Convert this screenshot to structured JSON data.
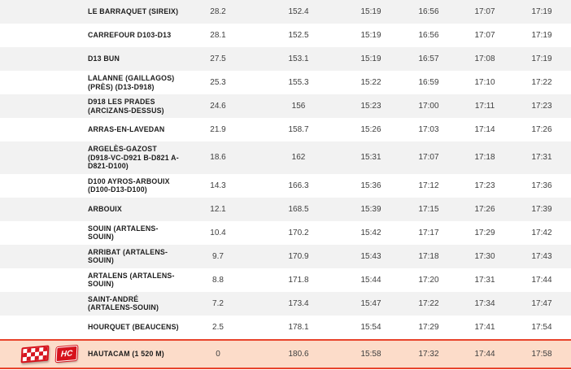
{
  "colors": {
    "accent_red": "#d6121c",
    "finish_border_red": "#e8432b",
    "finish_row_bg": "#fcdcc9",
    "alt_row_bg": "#f2f2f2"
  },
  "icons": {
    "finish_flag": "checkered-flag",
    "hc_label": "HC"
  },
  "table": {
    "rows": [
      {
        "location": "LE BARRAQUET (SIREIX)",
        "values": [
          "28.2",
          "152.4",
          "15:19",
          "16:56",
          "17:07",
          "17:19"
        ],
        "finish": false
      },
      {
        "location": "CARREFOUR D103-D13",
        "values": [
          "28.1",
          "152.5",
          "15:19",
          "16:56",
          "17:07",
          "17:19"
        ],
        "finish": false
      },
      {
        "location": "D13 BUN",
        "values": [
          "27.5",
          "153.1",
          "15:19",
          "16:57",
          "17:08",
          "17:19"
        ],
        "finish": false
      },
      {
        "location": "LALANNE (GAILLAGOS) (PRÈS) (D13-D918)",
        "values": [
          "25.3",
          "155.3",
          "15:22",
          "16:59",
          "17:10",
          "17:22"
        ],
        "finish": false
      },
      {
        "location": "D918 LES PRADES (ARCIZANS-DESSUS)",
        "values": [
          "24.6",
          "156",
          "15:23",
          "17:00",
          "17:11",
          "17:23"
        ],
        "finish": false
      },
      {
        "location": "ARRAS-EN-LAVEDAN",
        "values": [
          "21.9",
          "158.7",
          "15:26",
          "17:03",
          "17:14",
          "17:26"
        ],
        "finish": false
      },
      {
        "location": "ARGELÈS-GAZOST (D918-VC-D921 B-D821 A-D821-D100)",
        "values": [
          "18.6",
          "162",
          "15:31",
          "17:07",
          "17:18",
          "17:31"
        ],
        "finish": false
      },
      {
        "location": "D100 AYROS-ARBOUIX (D100-D13-D100)",
        "values": [
          "14.3",
          "166.3",
          "15:36",
          "17:12",
          "17:23",
          "17:36"
        ],
        "finish": false
      },
      {
        "location": "ARBOUIX",
        "values": [
          "12.1",
          "168.5",
          "15:39",
          "17:15",
          "17:26",
          "17:39"
        ],
        "finish": false
      },
      {
        "location": "SOUIN (ARTALENS-SOUIN)",
        "values": [
          "10.4",
          "170.2",
          "15:42",
          "17:17",
          "17:29",
          "17:42"
        ],
        "finish": false
      },
      {
        "location": "ARRIBAT (ARTALENS-SOUIN)",
        "values": [
          "9.7",
          "170.9",
          "15:43",
          "17:18",
          "17:30",
          "17:43"
        ],
        "finish": false
      },
      {
        "location": "ARTALENS (ARTALENS-SOUIN)",
        "values": [
          "8.8",
          "171.8",
          "15:44",
          "17:20",
          "17:31",
          "17:44"
        ],
        "finish": false
      },
      {
        "location": "SAINT-ANDRÉ (ARTALENS-SOUIN)",
        "values": [
          "7.2",
          "173.4",
          "15:47",
          "17:22",
          "17:34",
          "17:47"
        ],
        "finish": false
      },
      {
        "location": "HOURQUET (BEAUCENS)",
        "values": [
          "2.5",
          "178.1",
          "15:54",
          "17:29",
          "17:41",
          "17:54"
        ],
        "finish": false
      },
      {
        "location": "HAUTACAM (1 520 M)",
        "values": [
          "0",
          "180.6",
          "15:58",
          "17:32",
          "17:44",
          "17:58"
        ],
        "finish": true
      }
    ]
  }
}
